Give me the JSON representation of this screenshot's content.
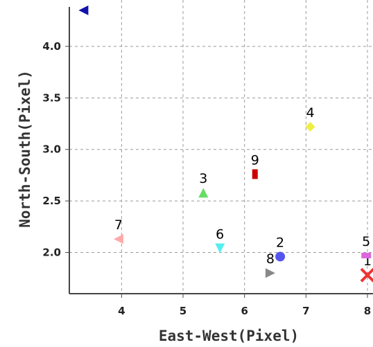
{
  "chart_data": {
    "type": "scatter",
    "title": "",
    "xlabel": "East-West(Pixel)",
    "ylabel": "North-South(Pixel)",
    "xlim": [
      3.15,
      8.0
    ],
    "ylim": [
      1.6,
      4.45
    ],
    "xticks": [
      "4",
      "5",
      "6",
      "7",
      "8"
    ],
    "yticks": [
      "2.0",
      "2.5",
      "3.0",
      "3.5",
      "4.0"
    ],
    "grid": true,
    "legend": "none",
    "points": [
      {
        "label": "1",
        "x": 8.0,
        "y": 1.78,
        "color": "#ee3333",
        "marker": "x"
      },
      {
        "label": "2",
        "x": 6.58,
        "y": 1.96,
        "color": "#5555ee",
        "marker": "circle"
      },
      {
        "label": "3",
        "x": 5.33,
        "y": 2.58,
        "color": "#66dd66",
        "marker": "triangle-up"
      },
      {
        "label": "4",
        "x": 7.07,
        "y": 3.22,
        "color": "#eeee44",
        "marker": "diamond"
      },
      {
        "label": "5",
        "x": 7.98,
        "y": 1.97,
        "color": "#dd66dd",
        "marker": "square"
      },
      {
        "label": "6",
        "x": 5.6,
        "y": 2.04,
        "color": "#55eeee",
        "marker": "triangle-down"
      },
      {
        "label": "7",
        "x": 3.95,
        "y": 2.13,
        "color": "#ffaaaa",
        "marker": "triangle-left"
      },
      {
        "label": "8",
        "x": 6.42,
        "y": 1.8,
        "color": "#888888",
        "marker": "triangle-right"
      },
      {
        "label": "9",
        "x": 6.17,
        "y": 2.76,
        "color": "#cc0000",
        "marker": "rect"
      },
      {
        "label": "",
        "x": 3.38,
        "y": 4.35,
        "color": "#1111aa",
        "marker": "triangle-left"
      }
    ]
  }
}
